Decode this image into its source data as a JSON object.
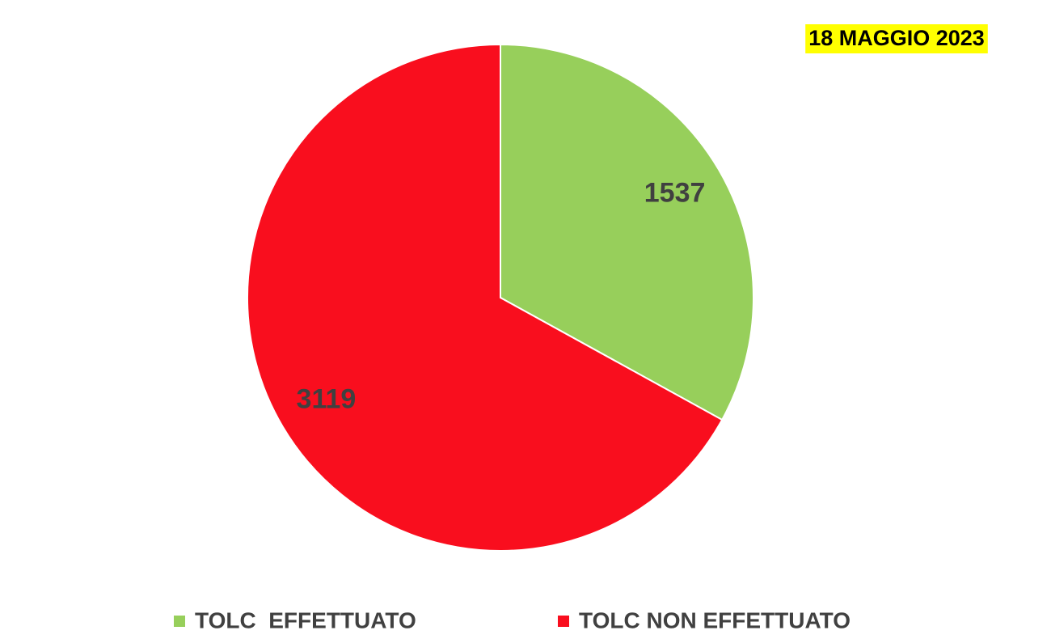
{
  "chart_data": {
    "type": "pie",
    "title": "18 MAGGIO 2023",
    "categories": [
      "TOLC  EFFETTUATO",
      "TOLC NON EFFETTUATO"
    ],
    "values": [
      1537,
      3119
    ],
    "colors": [
      "#97cf5b",
      "#f90e1e"
    ]
  }
}
